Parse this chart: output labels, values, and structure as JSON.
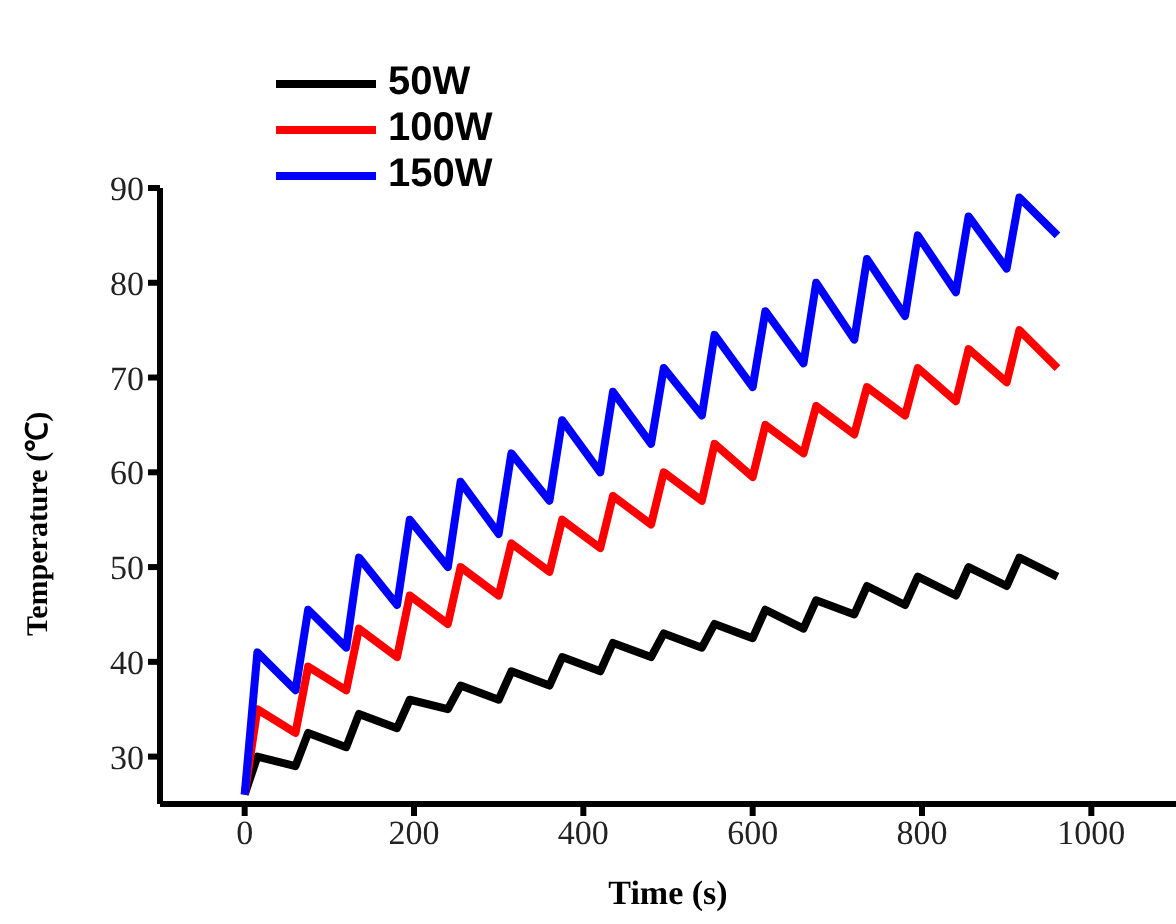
{
  "chart_data": {
    "type": "line",
    "xlabel": "Time (s)",
    "ylabel": "Temperature (℃)",
    "x": [
      0,
      15,
      60,
      75,
      120,
      135,
      180,
      195,
      240,
      255,
      300,
      315,
      360,
      375,
      420,
      435,
      480,
      495,
      540,
      555,
      600,
      615,
      660,
      675,
      720,
      735,
      780,
      795,
      840,
      855,
      900,
      915,
      960
    ],
    "series": [
      {
        "name": "50W",
        "color": "#000000",
        "values": [
          26,
          30,
          29,
          32.5,
          31,
          34.5,
          33,
          36,
          35,
          37.5,
          36,
          39,
          37.5,
          40.5,
          39,
          42,
          40.5,
          43,
          41.5,
          44,
          42.5,
          45.5,
          43.5,
          46.5,
          45,
          48,
          46,
          49,
          47,
          50,
          48,
          51,
          49
        ]
      },
      {
        "name": "100W",
        "color": "#ff0000",
        "values": [
          26,
          35,
          32.5,
          39.5,
          37,
          43.5,
          40.5,
          47,
          44,
          50,
          47,
          52.5,
          49.5,
          55,
          52,
          57.5,
          54.5,
          60,
          57,
          63,
          59.5,
          65,
          62,
          67,
          64,
          69,
          66,
          71,
          67.5,
          73,
          69.5,
          75,
          71
        ]
      },
      {
        "name": "150W",
        "color": "#0000ff",
        "values": [
          26,
          41,
          37,
          45.5,
          41.5,
          51,
          46,
          55,
          50,
          59,
          53.5,
          62,
          57,
          65.5,
          60,
          68.5,
          63,
          71,
          66,
          74.5,
          69,
          77,
          71.5,
          80,
          74,
          82.5,
          76.5,
          85,
          79,
          87,
          81.5,
          89,
          85
        ]
      }
    ],
    "xlim": [
      -100,
      1100
    ],
    "xticks": [
      0,
      200,
      400,
      600,
      800,
      1000
    ],
    "ylim": [
      25,
      90
    ],
    "yticks": [
      30,
      40,
      50,
      60,
      70,
      80,
      90
    ],
    "legend": "top left",
    "marker": "none",
    "line_style": "solid",
    "grid": false
  }
}
